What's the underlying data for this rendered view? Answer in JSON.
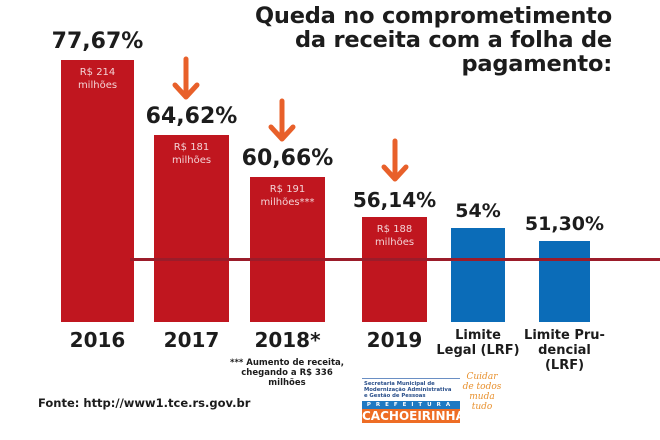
{
  "chart_data": {
    "type": "bar",
    "title": "Queda no comprometimento da receita com a folha de pagamento:",
    "title_lines": [
      "Queda no comprometimento",
      "da receita com a folha de",
      "pagamento:"
    ],
    "unit": "%",
    "ylim": [
      0,
      80
    ],
    "reference_line": {
      "value": 54,
      "label": "Limite Legal (LRF)"
    },
    "categories": [
      "2016",
      "2017",
      "2018*",
      "2019",
      "Limite Legal (LRF)",
      "Limite Prudencial (LRF)"
    ],
    "category_labels": [
      [
        "2016"
      ],
      [
        "2017"
      ],
      [
        "2018*"
      ],
      [
        "2019"
      ],
      [
        "Limite",
        "Legal (LRF)"
      ],
      [
        "Limite Pru-",
        "dencial",
        "(LRF)"
      ]
    ],
    "values": [
      77.67,
      64.62,
      60.66,
      56.14,
      54,
      51.3
    ],
    "value_labels": [
      "77,67%",
      "64,62%",
      "60,66%",
      "56,14%",
      "54%",
      "51,30%"
    ],
    "inner_labels": [
      [
        "R$ 214 milhões"
      ],
      [
        "R$ 181 milhões"
      ],
      [
        "R$ 191",
        "milhões***"
      ],
      [
        "R$ 188",
        "milhões"
      ],
      [],
      []
    ],
    "bar_colors": [
      "#c0161f",
      "#c0161f",
      "#c0161f",
      "#c0161f",
      "#0b6cb8",
      "#0b6cb8"
    ],
    "decrease_arrows_before": [
      "2017",
      "2018*",
      "2019"
    ],
    "arrow_color": "#e8602a",
    "grid": false,
    "legend": "none"
  },
  "footnote": [
    "*** Aumento de receita,",
    "chegando a R$ 336 milhões"
  ],
  "source": "Fonte: http://www1.tce.rs.gov.br",
  "logo": {
    "secretaria": [
      "Secretaria Municipal de",
      "Modernização Administrativa",
      "e Gestão de Pessoas"
    ],
    "prefeitura": "PREFEITURA",
    "city": "CACHOEIRINHA",
    "slogan": [
      "Cuidar",
      "de todos",
      "muda",
      "tudo"
    ]
  }
}
